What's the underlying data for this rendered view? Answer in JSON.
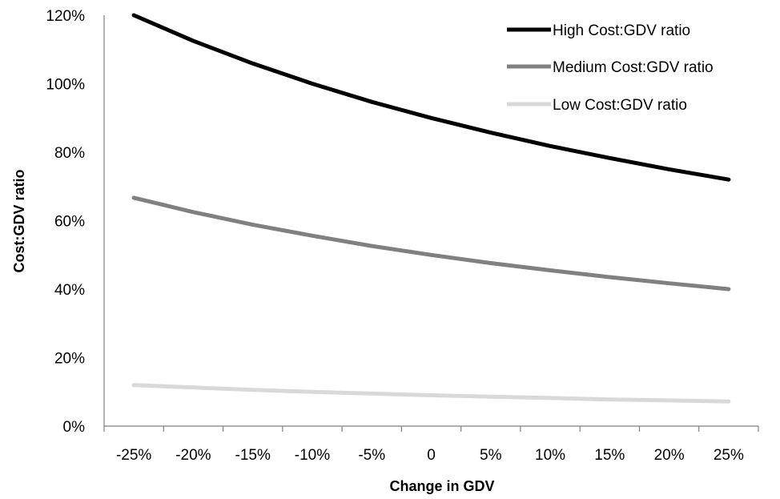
{
  "chart_data": {
    "type": "line",
    "title": "",
    "xlabel": "Change in GDV",
    "ylabel": "Cost:GDV ratio",
    "categories": [
      "-25%",
      "-20%",
      "-15%",
      "-10%",
      "-5%",
      "0",
      "5%",
      "10%",
      "15%",
      "20%",
      "25%"
    ],
    "x": [
      -25,
      -20,
      -15,
      -10,
      -5,
      0,
      5,
      10,
      15,
      20,
      25
    ],
    "ylim": [
      0,
      1.2
    ],
    "yticks": [
      0,
      0.2,
      0.4,
      0.6,
      0.8,
      1.0,
      1.2
    ],
    "ytick_labels": [
      "0%",
      "20%",
      "40%",
      "60%",
      "80%",
      "100%",
      "120%"
    ],
    "grid": false,
    "legend_position": "top-right",
    "series": [
      {
        "name": "High Cost:GDV ratio",
        "color": "#000000",
        "values": [
          1.2,
          1.125,
          1.059,
          1.0,
          0.947,
          0.9,
          0.857,
          0.818,
          0.783,
          0.75,
          0.72
        ]
      },
      {
        "name": "Medium Cost:GDV ratio",
        "color": "#808080",
        "values": [
          0.667,
          0.625,
          0.588,
          0.556,
          0.526,
          0.5,
          0.476,
          0.455,
          0.435,
          0.417,
          0.4
        ]
      },
      {
        "name": "Low Cost:GDV ratio",
        "color": "#d9d9d9",
        "values": [
          0.12,
          0.113,
          0.106,
          0.1,
          0.095,
          0.09,
          0.086,
          0.082,
          0.078,
          0.075,
          0.072
        ]
      }
    ]
  }
}
